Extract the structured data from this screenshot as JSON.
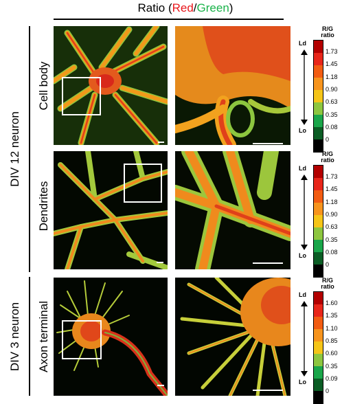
{
  "header": {
    "prefix": "Ratio (",
    "red_word": "Red",
    "slash": "/",
    "green_word": "Green",
    "suffix": ")",
    "red_color": "#e8161b",
    "green_color": "#1ab34a"
  },
  "groups": [
    {
      "label": "DIV 12 neuron"
    },
    {
      "label": "DIV 3 neuron"
    }
  ],
  "rows": [
    {
      "label": "Cell body",
      "legend_title_1": "R/G",
      "legend_title_2": "ratio",
      "ld": "Ld",
      "lo": "Lo",
      "ticks": [
        "1.73",
        "1.45",
        "1.18",
        "0.90",
        "0.63",
        "0.35",
        "0.08",
        "0"
      ]
    },
    {
      "label": "Dendrites",
      "legend_title_1": "R/G",
      "legend_title_2": "ratio",
      "ld": "Ld",
      "lo": "Lo",
      "ticks": [
        "1.73",
        "1.45",
        "1.18",
        "0.90",
        "0.63",
        "0.35",
        "0.08",
        "0"
      ]
    },
    {
      "label": "Axon terminal",
      "legend_title_1": "R/G",
      "legend_title_2": "ratio",
      "ld": "Ld",
      "lo": "Lo",
      "ticks": [
        "1.60",
        "1.35",
        "1.10",
        "0.85",
        "0.60",
        "0.35",
        "0.09",
        "0"
      ]
    }
  ],
  "colorbar_colors": [
    "#b30000",
    "#e8261a",
    "#f25c12",
    "#f7941d",
    "#f5c518",
    "#8dc63f",
    "#1aa64a",
    "#0a5c24",
    "#000000"
  ]
}
